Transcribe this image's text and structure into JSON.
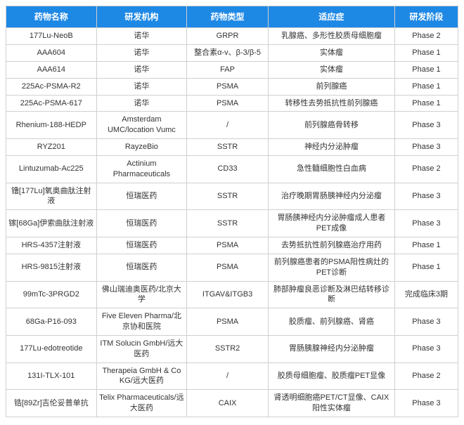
{
  "columns": [
    "药物名称",
    "研发机构",
    "药物类型",
    "适应症",
    "研发阶段"
  ],
  "rows": [
    [
      "177Lu-NeoB",
      "诺华",
      "GRPR",
      "乳腺癌、多形性胶质母细胞瘤",
      "Phase 2"
    ],
    [
      "AAA604",
      "诺华",
      "整合素α-v、β-3/β-5",
      "实体瘤",
      "Phase 1"
    ],
    [
      "AAA614",
      "诺华",
      "FAP",
      "实体瘤",
      "Phase 1"
    ],
    [
      "225Ac-PSMA-R2",
      "诺华",
      "PSMA",
      "前列腺癌",
      "Phase 1"
    ],
    [
      "225Ac-PSMA-617",
      "诺华",
      "PSMA",
      "转移性去势抵抗性前列腺癌",
      "Phase 1"
    ],
    [
      "Rhenium-188-HEDP",
      "Amsterdam UMC/location Vumc",
      "/",
      "前列腺癌骨转移",
      "Phase 3"
    ],
    [
      "RYZ201",
      "RayzeBio",
      "SSTR",
      "神经内分泌肿瘤",
      "Phase 3"
    ],
    [
      "Lintuzumab-Ac225",
      "Actinium Pharmaceuticals",
      "CD33",
      "急性髓细胞性白血病",
      "Phase 2"
    ],
    [
      "镥[177Lu]氧奥曲肽注射液",
      "恒瑞医药",
      "SSTR",
      "治疗晚期胃肠胰神经内分泌瘤",
      "Phase 3"
    ],
    [
      "镓[68Ga]伊索曲肽注射液",
      "恒瑞医药",
      "SSTR",
      "胃肠胰神经内分泌肿瘤成人患者PET成像",
      "Phase 3"
    ],
    [
      "HRS-4357注射液",
      "恒瑞医药",
      "PSMA",
      "去势抵抗性前列腺癌治疗用药",
      "Phase 1"
    ],
    [
      "HRS-9815注射液",
      "恒瑞医药",
      "PSMA",
      "前列腺癌患者的PSMA阳性病灶的PET诊断",
      "Phase 1"
    ],
    [
      "99mTc-3PRGD2",
      "佛山瑞迪奥医药/北京大学",
      "ITGAV&ITGB3",
      "肺部肿瘤良恶诊断及淋巴结转移诊断",
      "完成临床3期"
    ],
    [
      "68Ga-P16-093",
      "Five Eleven Pharma/北京协和医院",
      "PSMA",
      "胶质瘤、前列腺癌、肾癌",
      "Phase 3"
    ],
    [
      "177Lu-edotreotide",
      "ITM Solucin GmbH/远大医药",
      "SSTR2",
      "胃肠胰腺神经内分泌肿瘤",
      "Phase 3"
    ],
    [
      "131I-TLX-101",
      "Therapeia GmbH & Co KG/远大医药",
      "/",
      "胶质母细胞瘤、胶质瘤PET显像",
      "Phase 2"
    ],
    [
      "锆[89Zr]吉伦妥普单抗",
      "Telix Pharmaceuticals/远大医药",
      "CAIX",
      "肾透明细胞癌PET/CT显像、CAIX阳性实体瘤",
      "Phase 3"
    ]
  ],
  "header_bg": "#1e88e5",
  "header_fg": "#ffffff",
  "border_color": "#d0d0d0",
  "cell_fg": "#333333"
}
